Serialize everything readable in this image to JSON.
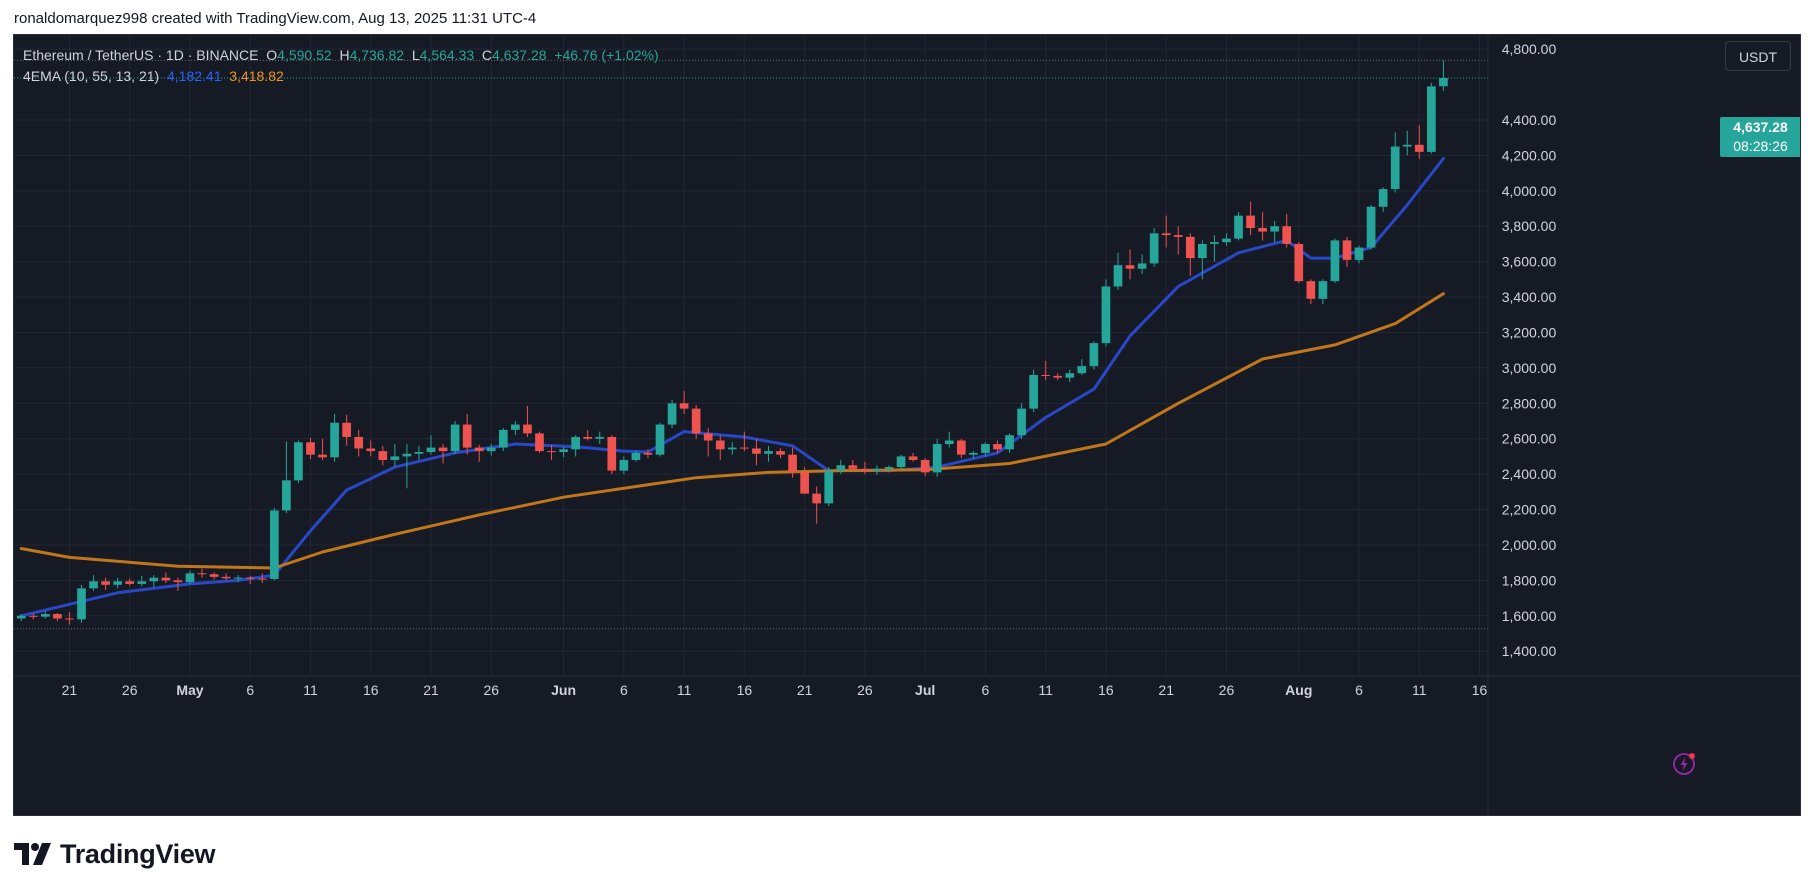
{
  "credit": "ronaldomarquez998 created with TradingView.com, Aug 13, 2025 11:31 UTC-4",
  "brand": "TradingView",
  "legend": {
    "symbol": "Ethereum / TetherUS · 1D · BINANCE",
    "open_label": "O",
    "open": "4,590.52",
    "high_label": "H",
    "high": "4,736.82",
    "low_label": "L",
    "low": "4,564.33",
    "close_label": "C",
    "close": "4,637.28",
    "change": "+46.76 (+1.02%)",
    "indicator": "4EMA (10, 55, 13, 21)",
    "ema_fast": "4,182.41",
    "ema_slow": "3,418.82"
  },
  "unit_button": "USDT",
  "price_tag": {
    "price": "4,637.28",
    "countdown": "08:28:26"
  },
  "colors": {
    "up": "#26a69a",
    "down": "#ef5350",
    "ema_fast": "#2948c8",
    "ema_slow": "#c2761a",
    "background": "#161a25",
    "grid": "#232733",
    "text": "#d1d4dc"
  },
  "icons": {
    "alert": "lightning-bolt-icon",
    "logo": "tradingview-logo-icon"
  },
  "chart_data": {
    "type": "candlestick",
    "title": "Ethereum / TetherUS · 1D · BINANCE",
    "ylabel": "USDT",
    "ylim": [
      1260,
      4880
    ],
    "y_ticks": [
      1400,
      1600,
      1800,
      2000,
      2200,
      2400,
      2600,
      2800,
      3000,
      3200,
      3400,
      3600,
      3800,
      4000,
      4200,
      4400,
      4800
    ],
    "y_tick_labels": [
      "1,400.00",
      "1,600.00",
      "1,800.00",
      "2,000.00",
      "2,200.00",
      "2,400.00",
      "2,600.00",
      "2,800.00",
      "3,000.00",
      "3,200.00",
      "3,400.00",
      "3,600.00",
      "3,800.00",
      "4,000.00",
      "4,200.00",
      "4,400.00",
      "4,800.00"
    ],
    "x_start": "2025-04-17",
    "x_end": "2025-08-17",
    "x_ticks": [
      {
        "date": "2025-04-21",
        "label": "21"
      },
      {
        "date": "2025-04-26",
        "label": "26"
      },
      {
        "date": "2025-05-01",
        "label": "May"
      },
      {
        "date": "2025-05-06",
        "label": "6"
      },
      {
        "date": "2025-05-11",
        "label": "11"
      },
      {
        "date": "2025-05-16",
        "label": "16"
      },
      {
        "date": "2025-05-21",
        "label": "21"
      },
      {
        "date": "2025-05-26",
        "label": "26"
      },
      {
        "date": "2025-06-01",
        "label": "Jun"
      },
      {
        "date": "2025-06-06",
        "label": "6"
      },
      {
        "date": "2025-06-11",
        "label": "11"
      },
      {
        "date": "2025-06-16",
        "label": "16"
      },
      {
        "date": "2025-06-21",
        "label": "21"
      },
      {
        "date": "2025-06-26",
        "label": "26"
      },
      {
        "date": "2025-07-01",
        "label": "Jul"
      },
      {
        "date": "2025-07-06",
        "label": "6"
      },
      {
        "date": "2025-07-11",
        "label": "11"
      },
      {
        "date": "2025-07-16",
        "label": "16"
      },
      {
        "date": "2025-07-21",
        "label": "21"
      },
      {
        "date": "2025-07-26",
        "label": "26"
      },
      {
        "date": "2025-08-01",
        "label": "Aug"
      },
      {
        "date": "2025-08-06",
        "label": "6"
      },
      {
        "date": "2025-08-11",
        "label": "11"
      },
      {
        "date": "2025-08-16",
        "label": "16"
      }
    ],
    "dotted_levels": [
      4736.82,
      1527
    ],
    "current_price": 4637.28,
    "candles": [
      [
        "2025-04-17",
        1585,
        1610,
        1570,
        1600
      ],
      [
        "2025-04-18",
        1600,
        1612,
        1580,
        1595
      ],
      [
        "2025-04-19",
        1595,
        1625,
        1585,
        1610
      ],
      [
        "2025-04-20",
        1610,
        1615,
        1570,
        1585
      ],
      [
        "2025-04-21",
        1585,
        1620,
        1550,
        1580
      ],
      [
        "2025-04-22",
        1580,
        1775,
        1560,
        1755
      ],
      [
        "2025-04-23",
        1755,
        1830,
        1740,
        1795
      ],
      [
        "2025-04-24",
        1795,
        1815,
        1745,
        1775
      ],
      [
        "2025-04-25",
        1775,
        1815,
        1755,
        1795
      ],
      [
        "2025-04-26",
        1795,
        1810,
        1770,
        1780
      ],
      [
        "2025-04-27",
        1780,
        1825,
        1765,
        1795
      ],
      [
        "2025-04-28",
        1795,
        1830,
        1760,
        1815
      ],
      [
        "2025-04-29",
        1815,
        1845,
        1785,
        1800
      ],
      [
        "2025-04-30",
        1800,
        1815,
        1740,
        1790
      ],
      [
        "2025-05-01",
        1790,
        1855,
        1780,
        1840
      ],
      [
        "2025-05-02",
        1840,
        1865,
        1815,
        1835
      ],
      [
        "2025-05-03",
        1835,
        1845,
        1805,
        1820
      ],
      [
        "2025-05-04",
        1820,
        1840,
        1800,
        1812
      ],
      [
        "2025-05-05",
        1812,
        1830,
        1790,
        1816
      ],
      [
        "2025-05-06",
        1816,
        1825,
        1780,
        1810
      ],
      [
        "2025-05-07",
        1810,
        1840,
        1785,
        1808
      ],
      [
        "2025-05-08",
        1808,
        2210,
        1800,
        2195
      ],
      [
        "2025-05-09",
        2195,
        2585,
        2180,
        2365
      ],
      [
        "2025-05-10",
        2365,
        2590,
        2350,
        2580
      ],
      [
        "2025-05-11",
        2580,
        2605,
        2485,
        2510
      ],
      [
        "2025-05-12",
        2510,
        2600,
        2480,
        2495
      ],
      [
        "2025-05-13",
        2495,
        2740,
        2470,
        2690
      ],
      [
        "2025-05-14",
        2690,
        2735,
        2560,
        2610
      ],
      [
        "2025-05-15",
        2610,
        2650,
        2500,
        2545
      ],
      [
        "2025-05-16",
        2545,
        2590,
        2500,
        2530
      ],
      [
        "2025-05-17",
        2530,
        2560,
        2450,
        2480
      ],
      [
        "2025-05-18",
        2480,
        2570,
        2440,
        2500
      ],
      [
        "2025-05-19",
        2500,
        2570,
        2320,
        2515
      ],
      [
        "2025-05-20",
        2515,
        2560,
        2480,
        2525
      ],
      [
        "2025-05-21",
        2525,
        2620,
        2510,
        2550
      ],
      [
        "2025-05-22",
        2550,
        2570,
        2460,
        2530
      ],
      [
        "2025-05-23",
        2530,
        2700,
        2515,
        2680
      ],
      [
        "2025-05-24",
        2680,
        2740,
        2510,
        2550
      ],
      [
        "2025-05-25",
        2550,
        2565,
        2470,
        2530
      ],
      [
        "2025-05-26",
        2530,
        2570,
        2505,
        2550
      ],
      [
        "2025-05-27",
        2550,
        2660,
        2530,
        2650
      ],
      [
        "2025-05-28",
        2650,
        2700,
        2620,
        2680
      ],
      [
        "2025-05-29",
        2680,
        2785,
        2610,
        2630
      ],
      [
        "2025-05-30",
        2630,
        2640,
        2520,
        2530
      ],
      [
        "2025-05-31",
        2530,
        2565,
        2480,
        2525
      ],
      [
        "2025-06-01",
        2525,
        2555,
        2495,
        2540
      ],
      [
        "2025-06-02",
        2540,
        2620,
        2500,
        2610
      ],
      [
        "2025-06-03",
        2610,
        2650,
        2590,
        2600
      ],
      [
        "2025-06-04",
        2600,
        2640,
        2570,
        2610
      ],
      [
        "2025-06-05",
        2610,
        2620,
        2400,
        2420
      ],
      [
        "2025-06-06",
        2420,
        2500,
        2400,
        2480
      ],
      [
        "2025-06-07",
        2480,
        2535,
        2470,
        2520
      ],
      [
        "2025-06-08",
        2520,
        2540,
        2490,
        2510
      ],
      [
        "2025-06-09",
        2510,
        2690,
        2500,
        2680
      ],
      [
        "2025-06-10",
        2680,
        2820,
        2660,
        2800
      ],
      [
        "2025-06-11",
        2800,
        2870,
        2740,
        2770
      ],
      [
        "2025-06-12",
        2770,
        2790,
        2600,
        2630
      ],
      [
        "2025-06-13",
        2630,
        2660,
        2500,
        2590
      ],
      [
        "2025-06-14",
        2590,
        2620,
        2480,
        2540
      ],
      [
        "2025-06-15",
        2540,
        2580,
        2510,
        2550
      ],
      [
        "2025-06-16",
        2550,
        2640,
        2530,
        2545
      ],
      [
        "2025-06-17",
        2545,
        2600,
        2450,
        2515
      ],
      [
        "2025-06-18",
        2515,
        2560,
        2470,
        2530
      ],
      [
        "2025-06-19",
        2530,
        2545,
        2490,
        2510
      ],
      [
        "2025-06-20",
        2510,
        2550,
        2380,
        2410
      ],
      [
        "2025-06-21",
        2410,
        2440,
        2290,
        2290
      ],
      [
        "2025-06-22",
        2290,
        2330,
        2120,
        2235
      ],
      [
        "2025-06-23",
        2235,
        2440,
        2220,
        2420
      ],
      [
        "2025-06-24",
        2420,
        2480,
        2400,
        2450
      ],
      [
        "2025-06-25",
        2450,
        2480,
        2420,
        2430
      ],
      [
        "2025-06-26",
        2430,
        2470,
        2400,
        2420
      ],
      [
        "2025-06-27",
        2420,
        2450,
        2395,
        2430
      ],
      [
        "2025-06-28",
        2430,
        2450,
        2410,
        2440
      ],
      [
        "2025-06-29",
        2440,
        2510,
        2430,
        2500
      ],
      [
        "2025-06-30",
        2500,
        2520,
        2470,
        2480
      ],
      [
        "2025-07-01",
        2480,
        2490,
        2390,
        2410
      ],
      [
        "2025-07-02",
        2410,
        2600,
        2385,
        2570
      ],
      [
        "2025-07-03",
        2570,
        2640,
        2550,
        2590
      ],
      [
        "2025-07-04",
        2590,
        2600,
        2490,
        2510
      ],
      [
        "2025-07-05",
        2510,
        2530,
        2490,
        2520
      ],
      [
        "2025-07-06",
        2520,
        2580,
        2500,
        2570
      ],
      [
        "2025-07-07",
        2570,
        2590,
        2520,
        2540
      ],
      [
        "2025-07-08",
        2540,
        2630,
        2520,
        2620
      ],
      [
        "2025-07-09",
        2620,
        2800,
        2600,
        2770
      ],
      [
        "2025-07-10",
        2770,
        2990,
        2750,
        2960
      ],
      [
        "2025-07-11",
        2960,
        3040,
        2930,
        2955
      ],
      [
        "2025-07-12",
        2955,
        2970,
        2930,
        2945
      ],
      [
        "2025-07-13",
        2945,
        2990,
        2920,
        2970
      ],
      [
        "2025-07-14",
        2970,
        3050,
        2960,
        3010
      ],
      [
        "2025-07-15",
        3010,
        3150,
        2990,
        3140
      ],
      [
        "2025-07-16",
        3140,
        3500,
        3120,
        3460
      ],
      [
        "2025-07-17",
        3460,
        3650,
        3440,
        3580
      ],
      [
        "2025-07-18",
        3580,
        3670,
        3500,
        3560
      ],
      [
        "2025-07-19",
        3560,
        3640,
        3530,
        3590
      ],
      [
        "2025-07-20",
        3590,
        3790,
        3570,
        3760
      ],
      [
        "2025-07-21",
        3760,
        3860,
        3680,
        3750
      ],
      [
        "2025-07-22",
        3750,
        3800,
        3640,
        3740
      ],
      [
        "2025-07-23",
        3740,
        3760,
        3520,
        3620
      ],
      [
        "2025-07-24",
        3620,
        3720,
        3500,
        3700
      ],
      [
        "2025-07-25",
        3700,
        3750,
        3600,
        3710
      ],
      [
        "2025-07-26",
        3710,
        3760,
        3690,
        3730
      ],
      [
        "2025-07-27",
        3730,
        3880,
        3720,
        3860
      ],
      [
        "2025-07-28",
        3860,
        3940,
        3750,
        3790
      ],
      [
        "2025-07-29",
        3790,
        3880,
        3720,
        3770
      ],
      [
        "2025-07-30",
        3770,
        3830,
        3710,
        3800
      ],
      [
        "2025-07-31",
        3800,
        3870,
        3680,
        3700
      ],
      [
        "2025-08-01",
        3700,
        3710,
        3480,
        3490
      ],
      [
        "2025-08-02",
        3490,
        3500,
        3360,
        3390
      ],
      [
        "2025-08-03",
        3390,
        3500,
        3360,
        3490
      ],
      [
        "2025-08-04",
        3490,
        3730,
        3480,
        3720
      ],
      [
        "2025-08-05",
        3720,
        3740,
        3570,
        3610
      ],
      [
        "2025-08-06",
        3610,
        3690,
        3590,
        3680
      ],
      [
        "2025-08-07",
        3680,
        3920,
        3670,
        3910
      ],
      [
        "2025-08-08",
        3910,
        4020,
        3880,
        4010
      ],
      [
        "2025-08-09",
        4010,
        4330,
        3990,
        4250
      ],
      [
        "2025-08-10",
        4250,
        4340,
        4200,
        4260
      ],
      [
        "2025-08-11",
        4260,
        4370,
        4180,
        4220
      ],
      [
        "2025-08-12",
        4220,
        4610,
        4210,
        4590
      ],
      [
        "2025-08-13",
        4590.52,
        4736.82,
        4564.33,
        4637.28
      ]
    ],
    "series": [
      {
        "name": "EMA 10",
        "color": "#2948c8",
        "points": [
          [
            "2025-04-17",
            1600
          ],
          [
            "2025-04-25",
            1730
          ],
          [
            "2025-05-01",
            1780
          ],
          [
            "2025-05-05",
            1800
          ],
          [
            "2025-05-08",
            1830
          ],
          [
            "2025-05-11",
            2080
          ],
          [
            "2025-05-14",
            2310
          ],
          [
            "2025-05-18",
            2440
          ],
          [
            "2025-05-23",
            2520
          ],
          [
            "2025-05-28",
            2570
          ],
          [
            "2025-06-02",
            2555
          ],
          [
            "2025-06-06",
            2530
          ],
          [
            "2025-06-08",
            2525
          ],
          [
            "2025-06-11",
            2640
          ],
          [
            "2025-06-16",
            2610
          ],
          [
            "2025-06-20",
            2560
          ],
          [
            "2025-06-23",
            2420
          ],
          [
            "2025-06-28",
            2420
          ],
          [
            "2025-07-02",
            2440
          ],
          [
            "2025-07-07",
            2520
          ],
          [
            "2025-07-11",
            2720
          ],
          [
            "2025-07-15",
            2880
          ],
          [
            "2025-07-18",
            3180
          ],
          [
            "2025-07-22",
            3460
          ],
          [
            "2025-07-27",
            3650
          ],
          [
            "2025-07-31",
            3720
          ],
          [
            "2025-08-02",
            3620
          ],
          [
            "2025-08-04",
            3620
          ],
          [
            "2025-08-07",
            3680
          ],
          [
            "2025-08-10",
            3920
          ],
          [
            "2025-08-13",
            4182.41
          ]
        ]
      },
      {
        "name": "EMA 55",
        "color": "#c2761a",
        "points": [
          [
            "2025-04-17",
            1980
          ],
          [
            "2025-04-21",
            1930
          ],
          [
            "2025-04-30",
            1880
          ],
          [
            "2025-05-08",
            1870
          ],
          [
            "2025-05-12",
            1960
          ],
          [
            "2025-05-18",
            2060
          ],
          [
            "2025-05-25",
            2170
          ],
          [
            "2025-06-01",
            2270
          ],
          [
            "2025-06-07",
            2330
          ],
          [
            "2025-06-12",
            2380
          ],
          [
            "2025-06-18",
            2410
          ],
          [
            "2025-06-24",
            2420
          ],
          [
            "2025-07-01",
            2425
          ],
          [
            "2025-07-08",
            2460
          ],
          [
            "2025-07-16",
            2570
          ],
          [
            "2025-07-22",
            2800
          ],
          [
            "2025-07-29",
            3050
          ],
          [
            "2025-08-04",
            3130
          ],
          [
            "2025-08-09",
            3250
          ],
          [
            "2025-08-13",
            3418.82
          ]
        ]
      }
    ]
  }
}
